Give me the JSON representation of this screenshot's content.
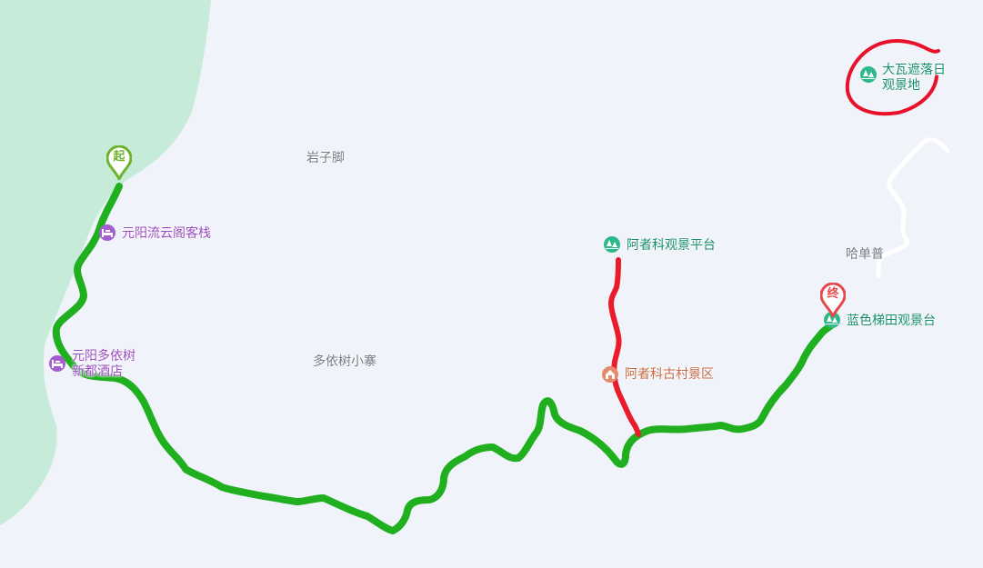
{
  "colors": {
    "land": "#f0f3f9",
    "water": "#c6ecd9",
    "route": "#1faf1f",
    "detour": "#ea1c2b",
    "annotation": "#e8102a",
    "road": "#ffffff",
    "start_pin": "#6db32c",
    "end_pin": "#e5484d",
    "poi_scenic": "#2fb98a",
    "poi_hotel": "#a35fcf",
    "poi_village": "#e48a6a"
  },
  "places": {
    "yanzijiao": "岩子脚",
    "duoyishu_xiaozhai": "多依树小寨",
    "hadanpu": "哈单普"
  },
  "pois": {
    "dawazhe": "大瓦遮落日观景地",
    "azheke_platform": "阿者科观景平台",
    "azheke_village": "阿者科古村景区",
    "lanse_titian": "蓝色梯田观景台",
    "liuyunge": "元阳流云阁客栈",
    "duoyishu_hotel": "元阳多依树新都酒店"
  },
  "markers": {
    "start": "起",
    "end": "终"
  },
  "icons": {
    "scenic": "tree-icon",
    "hotel": "bed-icon",
    "village": "village-icon"
  }
}
